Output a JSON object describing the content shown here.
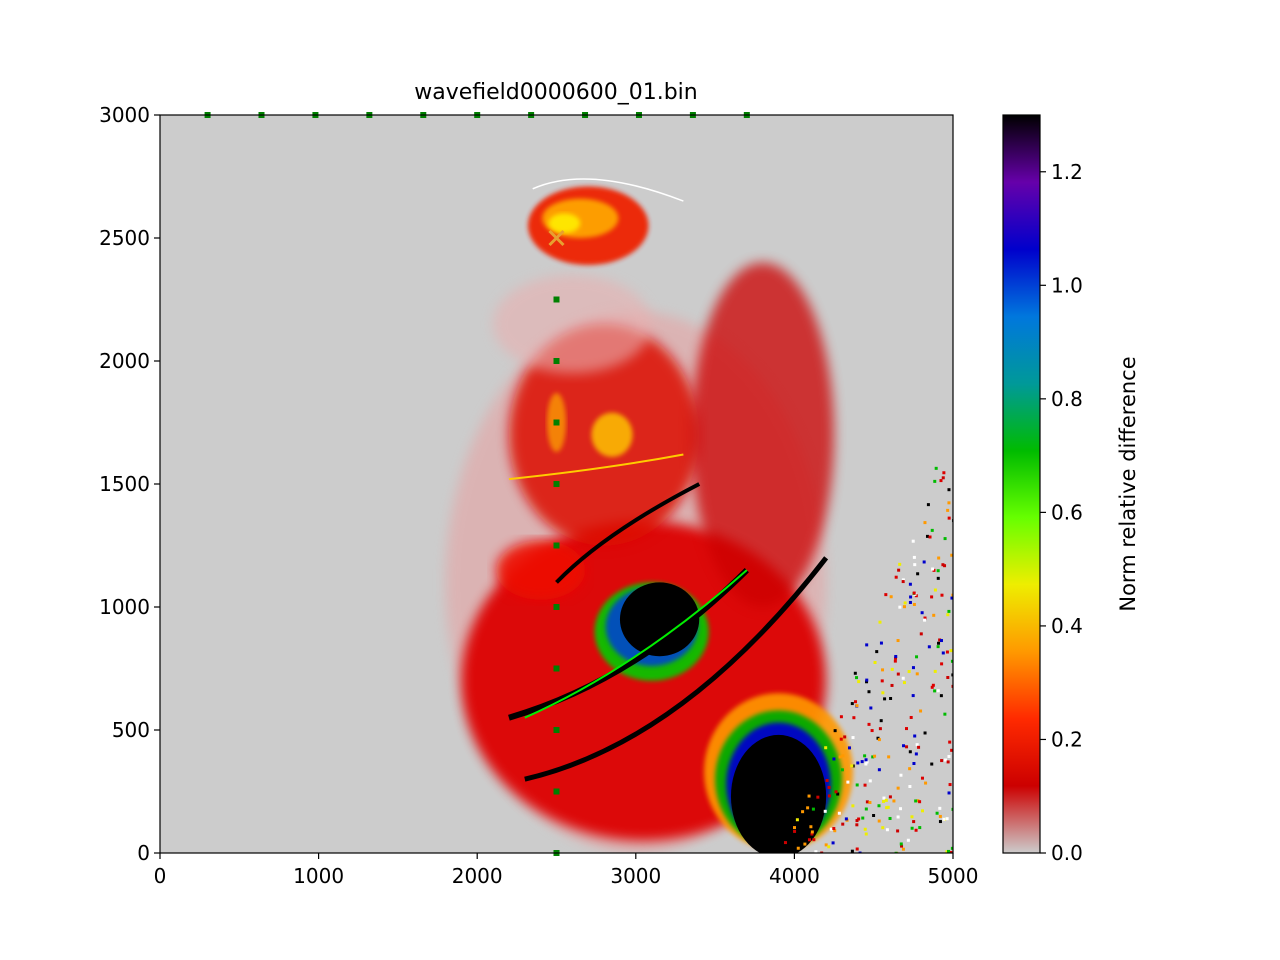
{
  "chart_data": {
    "type": "heatmap",
    "title": "wavefield0000600_01.bin",
    "xlabel": "",
    "ylabel": "",
    "xlim": [
      0,
      5000
    ],
    "ylim": [
      0,
      3000
    ],
    "x_ticks": [
      0,
      1000,
      2000,
      3000,
      4000,
      5000
    ],
    "y_ticks": [
      0,
      500,
      1000,
      1500,
      2000,
      2500,
      3000
    ],
    "colorbar": {
      "label": "Norm relative difference",
      "range": [
        0,
        1.3
      ],
      "ticks": [
        "0.0",
        "0.2",
        "0.4",
        "0.6",
        "0.8",
        "1.0",
        "1.2"
      ],
      "tick_values": [
        0,
        0.2,
        0.4,
        0.6,
        0.8,
        1.0,
        1.2
      ],
      "colormap": "nipy_spectral-like with light grey at zero",
      "colors": [
        "#cccccc",
        "#cc0000",
        "#ff2a00",
        "#ff9900",
        "#eeee00",
        "#66ff00",
        "#00bb00",
        "#009999",
        "#0077dd",
        "#0000cc",
        "#6600aa",
        "#000000"
      ]
    },
    "source": {
      "x": 2500,
      "y": 2500,
      "marker": "x",
      "color": "#e8a030"
    },
    "receivers_top": {
      "y": 3000,
      "x": [
        300,
        640,
        980,
        1320,
        1660,
        2000,
        2340,
        2680,
        3020,
        3360,
        3700
      ],
      "color": "#008000"
    },
    "receivers_vertical": {
      "x": 2500,
      "y": [
        0,
        250,
        500,
        750,
        1000,
        1250,
        1500,
        1750,
        2000,
        2250
      ],
      "color": "#008000"
    },
    "background_color": "#cccccc"
  }
}
